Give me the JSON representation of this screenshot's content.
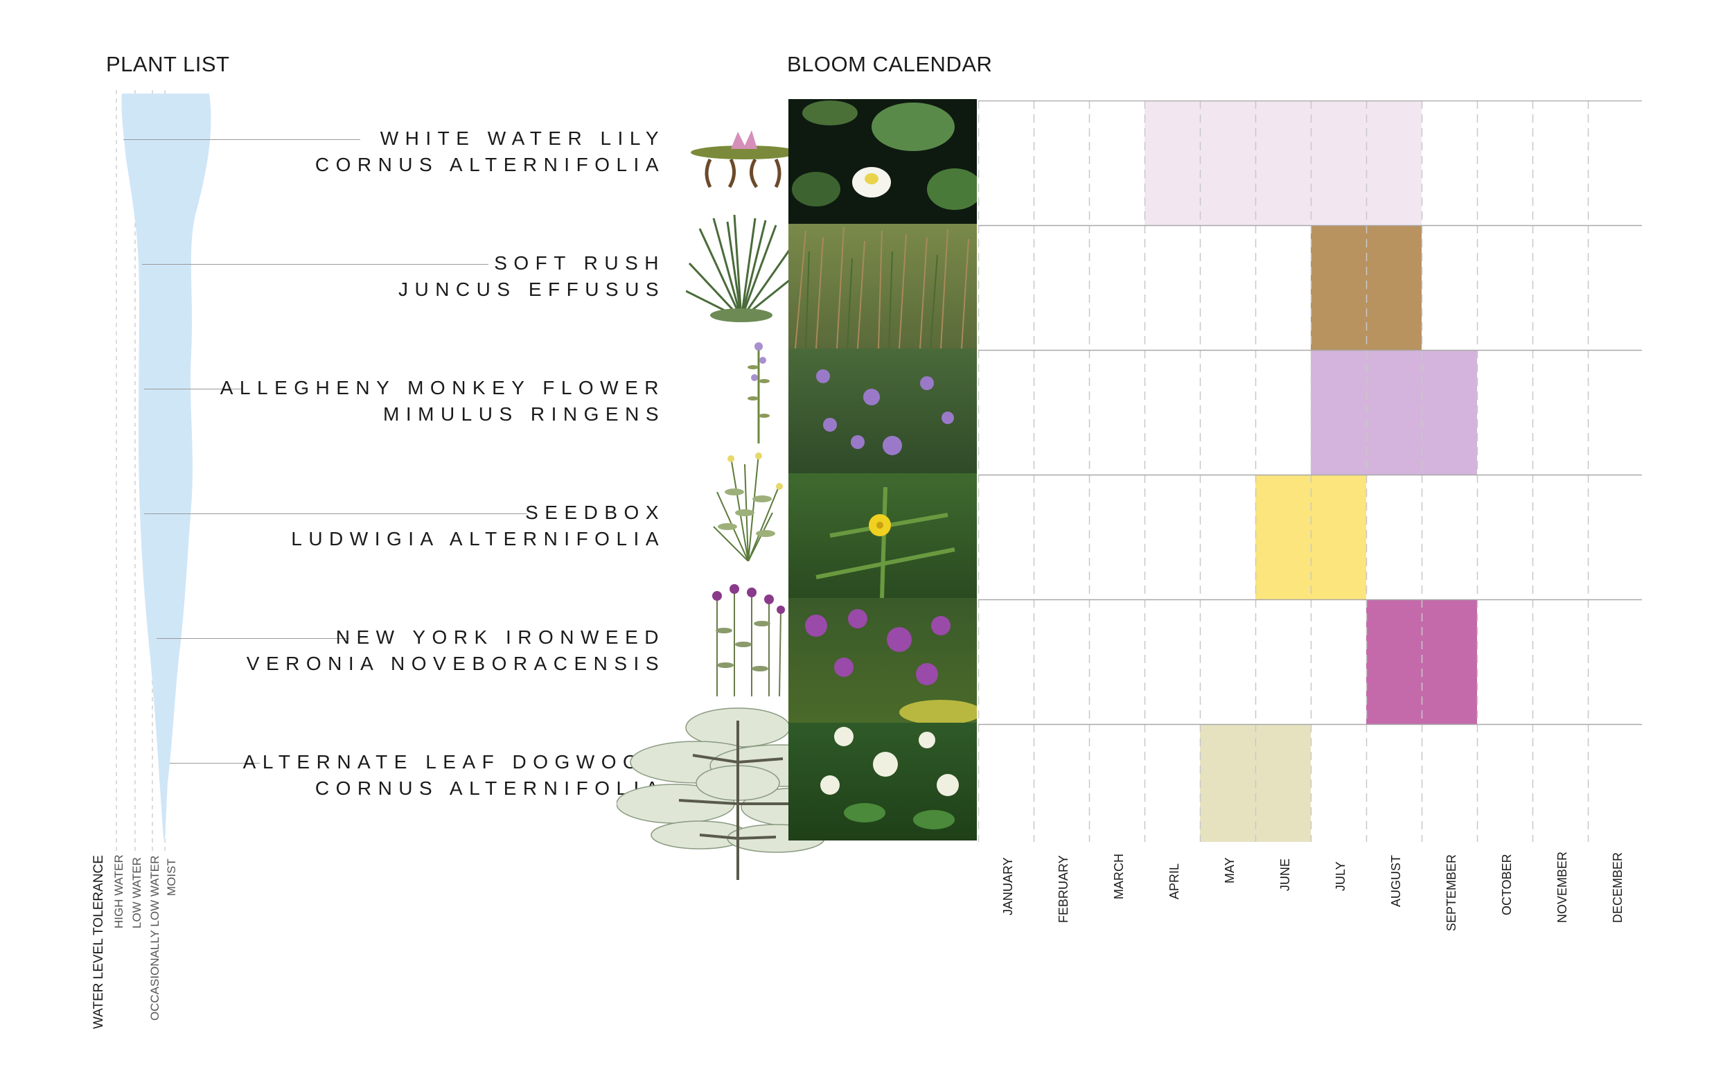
{
  "headings": {
    "plant_list": "PLANT LIST",
    "bloom_calendar": "BLOOM CALENDAR"
  },
  "water_level": {
    "title": "WATER LEVEL TOLERANCE",
    "levels": [
      "HIGH WATER",
      "LOW WATER",
      "OCCASIONALLY LOW WATER",
      "MOIST"
    ],
    "color": "#cfe6f7"
  },
  "plants": [
    {
      "common": "WHITE WATER LILY",
      "latin": "CORNUS ALTERNIFOLIA",
      "bloom_color": "#f2e7f1",
      "bloom_start": "APRIL",
      "bloom_end": "AUGUST",
      "photo_theme": "water-lily"
    },
    {
      "common": "SOFT RUSH",
      "latin": "JUNCUS EFFUSUS",
      "bloom_color": "#b8925f",
      "bloom_start": "JULY",
      "bloom_end": "AUGUST",
      "photo_theme": "rush"
    },
    {
      "common": "ALLEGHENY MONKEY FLOWER",
      "latin": "MIMULUS RINGENS",
      "bloom_color": "#d4b4dc",
      "bloom_start": "JULY",
      "bloom_end": "SEPTEMBER",
      "photo_theme": "monkey-flower"
    },
    {
      "common": "SEEDBOX",
      "latin": "LUDWIGIA ALTERNIFOLIA",
      "bloom_color": "#fbe57c",
      "bloom_start": "JUNE",
      "bloom_end": "JULY",
      "photo_theme": "seedbox"
    },
    {
      "common": "NEW YORK IRONWEED",
      "latin": "VERONIA NOVEBORACENSIS",
      "bloom_color": "#c46aab",
      "bloom_start": "AUGUST",
      "bloom_end": "SEPTEMBER",
      "photo_theme": "ironweed"
    },
    {
      "common": "ALTERNATE LEAF DOGWOOD",
      "latin": "CORNUS ALTERNIFOLIA",
      "bloom_color": "#e6e2c0",
      "bloom_start": "MAY",
      "bloom_end": "JUNE",
      "photo_theme": "dogwood"
    }
  ],
  "months": [
    "JANUARY",
    "FEBRUARY",
    "MARCH",
    "APRIL",
    "MAY",
    "JUNE",
    "JULY",
    "AUGUST",
    "SEPTEMBER",
    "OCTOBER",
    "NOVEMBER",
    "DECEMBER"
  ]
}
